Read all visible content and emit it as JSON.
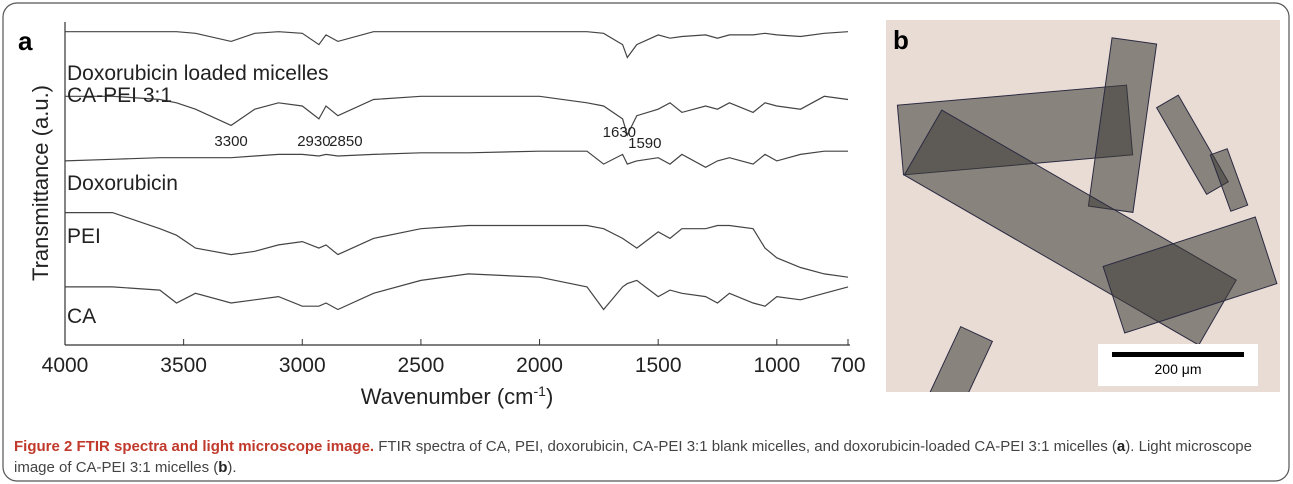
{
  "chart_data": {
    "type": "line",
    "panel_label": "a",
    "x_label": [
      "Wavenumber (cm",
      "-1",
      ")"
    ],
    "y_label": "Transmittance (a.u.)",
    "xlim": [
      4000,
      700
    ],
    "xticks": [
      4000,
      3500,
      3000,
      2500,
      2000,
      1500,
      1000,
      700
    ],
    "ylim": [
      0,
      100
    ],
    "x": [
      4000,
      3800,
      3600,
      3530,
      3450,
      3300,
      3200,
      3100,
      3000,
      2930,
      2900,
      2850,
      2700,
      2500,
      2300,
      2000,
      1800,
      1730,
      1650,
      1630,
      1590,
      1500,
      1450,
      1400,
      1300,
      1250,
      1200,
      1100,
      1050,
      1000,
      900,
      800,
      700
    ],
    "series": [
      {
        "name": "Doxorubicin loaded micelles",
        "color": "#444444",
        "values": [
          97,
          97,
          97,
          97,
          96.5,
          94,
          96.5,
          97,
          96.5,
          93,
          96,
          94,
          97,
          97,
          97,
          97,
          97,
          96.5,
          93,
          89,
          93,
          96,
          95,
          95.5,
          96,
          95,
          96,
          96,
          96.5,
          96,
          95.5,
          96.5,
          97
        ]
      },
      {
        "name": "CA-PEI 3:1",
        "color": "#444444",
        "values": [
          77,
          77,
          76,
          75,
          73,
          68,
          73,
          75,
          74,
          70,
          74,
          71,
          76,
          77,
          77,
          77,
          75,
          74,
          70,
          65,
          71,
          73,
          75,
          72,
          74,
          73,
          75,
          72,
          75,
          74,
          73,
          77,
          76
        ]
      },
      {
        "name": "Doxorubicin",
        "color": "#444444",
        "values": [
          57,
          57.5,
          58,
          58,
          58,
          58,
          58.5,
          59,
          59,
          58.5,
          59,
          58.5,
          59,
          59.5,
          59.5,
          60,
          60,
          56,
          59,
          56,
          57,
          58,
          56,
          59,
          55,
          57,
          58,
          56,
          59,
          57,
          59,
          60,
          60
        ]
      },
      {
        "name": "PEI",
        "color": "#444444",
        "values": [
          41,
          41,
          36,
          34,
          30,
          28,
          29,
          31,
          32,
          30,
          31,
          28,
          33,
          36,
          37,
          37,
          37,
          36,
          33,
          32,
          30,
          35,
          33,
          36,
          36,
          37,
          37,
          36,
          30,
          27,
          24,
          22,
          21
        ]
      },
      {
        "name": "CA",
        "color": "#444444",
        "values": [
          18,
          18,
          17,
          13,
          16,
          13,
          14,
          15,
          12,
          12,
          13,
          11,
          16,
          20,
          22,
          21,
          18,
          11,
          18,
          19,
          20,
          15,
          17,
          16,
          15,
          13,
          16,
          13,
          12,
          15,
          14,
          16,
          18
        ]
      }
    ],
    "peak_labels": [
      3300,
      2930,
      2850,
      1630,
      1590
    ]
  },
  "image": {
    "panel_label": "b",
    "scale_bar": "200 μm"
  },
  "caption": {
    "title": "Figure 2 FTIR spectra and light microscope image.",
    "body": [
      "FTIR spectra of CA, PEI, doxorubicin, CA-PEI 3:1 blank micelles, and doxorubicin-loaded CA-PEI 3:1 micelles (",
      "a",
      "). Light microscope image of CA-PEI 3:1 micelles (",
      "b",
      ")."
    ]
  }
}
